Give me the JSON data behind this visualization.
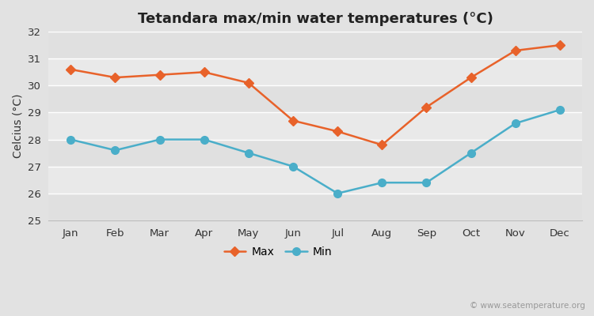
{
  "title": "Tetandara max/min water temperatures (°C)",
  "ylabel": "Celcius (°C)",
  "months": [
    "Jan",
    "Feb",
    "Mar",
    "Apr",
    "May",
    "Jun",
    "Jul",
    "Aug",
    "Sep",
    "Oct",
    "Nov",
    "Dec"
  ],
  "max_values": [
    30.6,
    30.3,
    30.4,
    30.5,
    30.1,
    28.7,
    28.3,
    27.8,
    29.2,
    30.3,
    31.3,
    31.5
  ],
  "min_values": [
    28.0,
    27.6,
    28.0,
    28.0,
    27.5,
    27.0,
    26.0,
    26.4,
    26.4,
    27.5,
    28.6,
    29.1
  ],
  "max_color": "#e8622a",
  "min_color": "#4aaec9",
  "fig_bg_color": "#e2e2e2",
  "plot_bg_color": "#ebebeb",
  "band_color_light": "#e8e8e8",
  "band_color_dark": "#d8d8d8",
  "ylim": [
    25,
    32
  ],
  "yticks": [
    25,
    26,
    27,
    28,
    29,
    30,
    31,
    32
  ],
  "legend_labels": [
    "Max",
    "Min"
  ],
  "watermark": "© www.seatemperature.org",
  "title_fontsize": 13,
  "axis_label_fontsize": 10,
  "tick_fontsize": 9.5,
  "legend_fontsize": 10,
  "watermark_fontsize": 7.5,
  "line_width": 1.8,
  "max_marker": "D",
  "min_marker": "o",
  "marker_size_max": 6,
  "marker_size_min": 7
}
